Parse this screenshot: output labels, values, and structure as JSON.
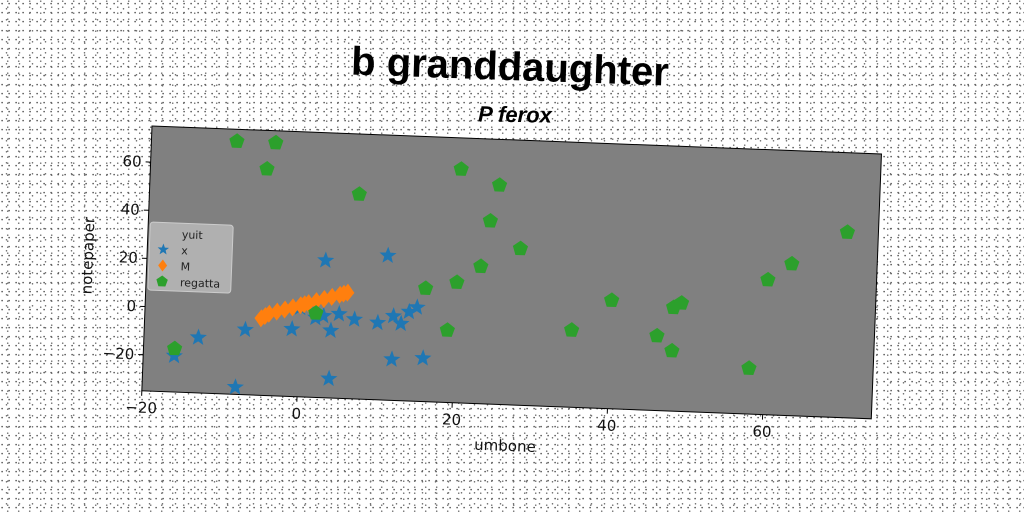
{
  "chart_data": {
    "type": "scatter",
    "title": "b granddaughter",
    "subtitle": "P ferox",
    "xlabel": "umbone",
    "ylabel": "notepaper",
    "xlim": [
      -20,
      74
    ],
    "ylim": [
      -35,
      75
    ],
    "xticks": [
      -20,
      0,
      20,
      40,
      60
    ],
    "yticks": [
      -20,
      0,
      20,
      40,
      60
    ],
    "grid": false,
    "legend_position": "center-left",
    "background_color": "#808080",
    "series": [
      {
        "name": "yuit",
        "marker": "none",
        "color": "#d0d0d0",
        "points": []
      },
      {
        "name": "x",
        "marker": "star",
        "color": "#1f77b4",
        "points": [
          [
            -16,
            -20
          ],
          [
            -13,
            -12
          ],
          [
            -7,
            -8
          ],
          [
            -8,
            -32
          ],
          [
            -1,
            -7
          ],
          [
            3,
            22
          ],
          [
            4,
            -27
          ],
          [
            4,
            -7
          ],
          [
            2,
            -2
          ],
          [
            5,
            0
          ],
          [
            7,
            -2
          ],
          [
            10,
            -3
          ],
          [
            11,
            25
          ],
          [
            12,
            0
          ],
          [
            12,
            -18
          ],
          [
            13,
            -3
          ],
          [
            14,
            2
          ],
          [
            15,
            4
          ],
          [
            16,
            -17
          ],
          [
            3,
            -1
          ],
          [
            0,
            2
          ]
        ]
      },
      {
        "name": "M",
        "marker": "diamond",
        "color": "#ff7f0e",
        "points": [
          [
            -5,
            -3
          ],
          [
            -4,
            -1
          ],
          [
            -3,
            0
          ],
          [
            -2,
            1
          ],
          [
            -1,
            2
          ],
          [
            0,
            3
          ],
          [
            1,
            4
          ],
          [
            2,
            5
          ],
          [
            3,
            6
          ],
          [
            4,
            7
          ],
          [
            5,
            8
          ],
          [
            6,
            9
          ],
          [
            -4.5,
            -2
          ],
          [
            0.5,
            3.5
          ],
          [
            5.5,
            8.5
          ]
        ]
      },
      {
        "name": "regatta",
        "marker": "pentagon",
        "color": "#2ca02c",
        "points": [
          [
            -9,
            70
          ],
          [
            -4,
            70
          ],
          [
            -5,
            59
          ],
          [
            7,
            50
          ],
          [
            20,
            62
          ],
          [
            25,
            56
          ],
          [
            24,
            41
          ],
          [
            28,
            30
          ],
          [
            23,
            22
          ],
          [
            20,
            15
          ],
          [
            16,
            12
          ],
          [
            19,
            -5
          ],
          [
            2,
            0
          ],
          [
            -16,
            -17
          ],
          [
            35,
            -3
          ],
          [
            40,
            10
          ],
          [
            46,
            -4
          ],
          [
            48,
            8
          ],
          [
            49,
            10
          ],
          [
            48,
            -10
          ],
          [
            58,
            -16
          ],
          [
            60,
            21
          ],
          [
            63,
            28
          ],
          [
            70,
            42
          ]
        ]
      }
    ]
  }
}
